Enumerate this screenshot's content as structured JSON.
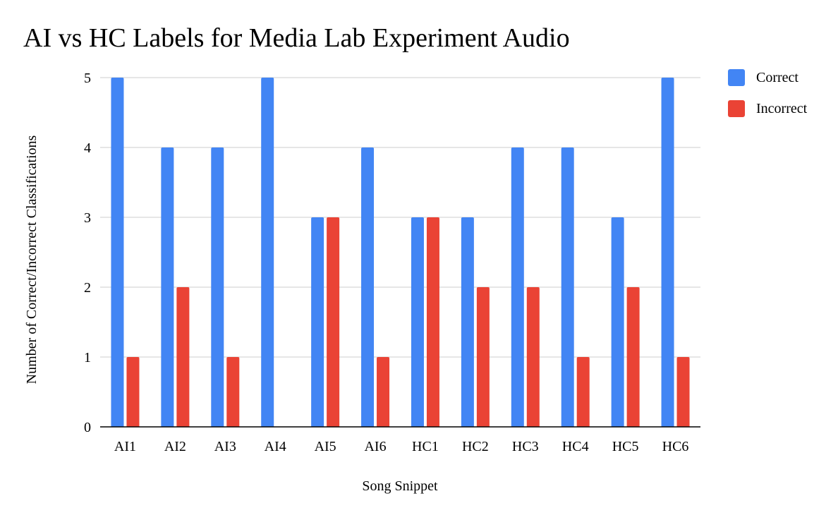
{
  "chart_data": {
    "type": "bar",
    "title": "AI vs HC Labels for Media Lab Experiment Audio",
    "xlabel": "Song Snippet",
    "ylabel": "Number of Correct/Incorrect Classifications",
    "categories": [
      "AI1",
      "AI2",
      "AI3",
      "AI4",
      "AI5",
      "AI6",
      "HC1",
      "HC2",
      "HC3",
      "HC4",
      "HC5",
      "HC6"
    ],
    "series": [
      {
        "name": "Correct",
        "color": "#4285f4",
        "values": [
          5,
          4,
          4,
          5,
          3,
          4,
          3,
          3,
          4,
          4,
          3,
          5
        ]
      },
      {
        "name": "Incorrect",
        "color": "#ea4335",
        "values": [
          1,
          2,
          1,
          0,
          3,
          1,
          3,
          2,
          2,
          1,
          2,
          1
        ]
      }
    ],
    "ylim": [
      0,
      5
    ],
    "yticks": [
      "0",
      "1",
      "2",
      "3",
      "4",
      "5"
    ],
    "grid": true,
    "legend_position": "top-right"
  }
}
